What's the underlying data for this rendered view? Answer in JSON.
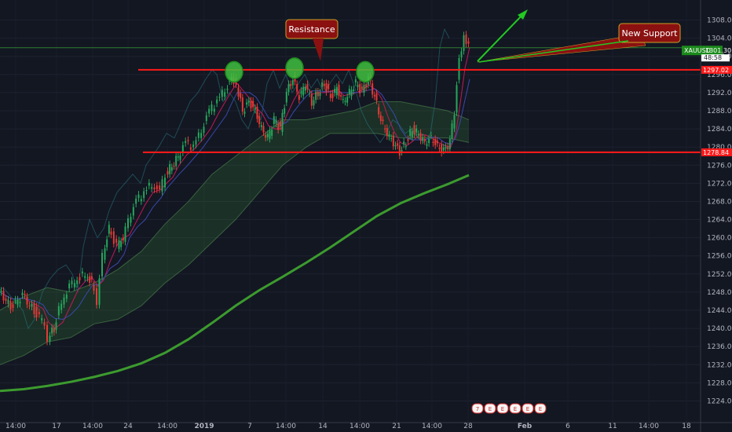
{
  "chart_data": {
    "type": "candlestick",
    "symbol": "XAUUSD",
    "last_price": "1301.30",
    "countdown": "48:58",
    "y_axis": {
      "ylim": [
        1222,
        1310
      ],
      "ticks": [
        "1308.00",
        "1304.00",
        "1300.00",
        "1296.00",
        "1292.00",
        "1288.00",
        "1284.00",
        "1280.00",
        "1276.00",
        "1272.00",
        "1268.00",
        "1264.00",
        "1260.00",
        "1256.00",
        "1252.00",
        "1248.00",
        "1244.00",
        "1240.00",
        "1236.00",
        "1232.00",
        "1228.00",
        "1224.00"
      ]
    },
    "x_axis": {
      "labels": [
        "14:00",
        "17",
        "14:00",
        "24",
        "14:00",
        "2019",
        "7",
        "14:00",
        "14",
        "14:00",
        "21",
        "14:00",
        "28",
        "Feb",
        "6",
        "11",
        "14:00",
        "18"
      ]
    },
    "horizontal_levels": [
      {
        "name": "resistance",
        "value": 1297.02,
        "label": "1297.02",
        "color": "#ff1a1a"
      },
      {
        "name": "support",
        "value": 1278.84,
        "label": "1278.84",
        "color": "#ff1a1a"
      }
    ],
    "annotations": {
      "resistance": "Resistance",
      "new_support": "New Support"
    },
    "event_badges": [
      "7",
      "E",
      "E",
      "E",
      "E",
      "E"
    ],
    "moving_average_200": [
      [
        0,
        1226.2
      ],
      [
        30,
        1226.6
      ],
      [
        60,
        1227.3
      ],
      [
        90,
        1228.2
      ],
      [
        120,
        1229.3
      ],
      [
        150,
        1230.6
      ],
      [
        180,
        1232.3
      ],
      [
        210,
        1234.6
      ],
      [
        240,
        1237.6
      ],
      [
        270,
        1241.2
      ],
      [
        300,
        1245.0
      ],
      [
        330,
        1248.4
      ],
      [
        360,
        1251.4
      ],
      [
        390,
        1254.5
      ],
      [
        420,
        1257.8
      ],
      [
        450,
        1261.3
      ],
      [
        480,
        1264.8
      ],
      [
        510,
        1267.6
      ],
      [
        540,
        1269.8
      ],
      [
        570,
        1271.8
      ],
      [
        597,
        1273.8
      ]
    ],
    "cloud_upper": [
      [
        0,
        1244
      ],
      [
        30,
        1247
      ],
      [
        60,
        1249
      ],
      [
        90,
        1248
      ],
      [
        120,
        1250
      ],
      [
        150,
        1253
      ],
      [
        180,
        1257
      ],
      [
        210,
        1263
      ],
      [
        240,
        1268
      ],
      [
        270,
        1274
      ],
      [
        300,
        1278
      ],
      [
        330,
        1282
      ],
      [
        360,
        1286
      ],
      [
        390,
        1286
      ],
      [
        420,
        1287
      ],
      [
        450,
        1288
      ],
      [
        480,
        1290
      ],
      [
        510,
        1290
      ],
      [
        540,
        1289
      ],
      [
        570,
        1288
      ],
      [
        597,
        1286
      ]
    ],
    "cloud_lower": [
      [
        0,
        1232
      ],
      [
        30,
        1234
      ],
      [
        60,
        1237
      ],
      [
        90,
        1238
      ],
      [
        120,
        1241
      ],
      [
        150,
        1242
      ],
      [
        180,
        1245
      ],
      [
        210,
        1250
      ],
      [
        240,
        1254
      ],
      [
        270,
        1259
      ],
      [
        300,
        1264
      ],
      [
        330,
        1270
      ],
      [
        360,
        1276
      ],
      [
        390,
        1280
      ],
      [
        420,
        1283
      ],
      [
        450,
        1283
      ],
      [
        480,
        1283
      ],
      [
        510,
        1282
      ],
      [
        540,
        1282
      ],
      [
        570,
        1282
      ],
      [
        597,
        1281
      ]
    ],
    "price_path": [
      [
        0,
        1248
      ],
      [
        15,
        1245
      ],
      [
        30,
        1247
      ],
      [
        45,
        1244
      ],
      [
        55,
        1242
      ],
      [
        62,
        1238
      ],
      [
        70,
        1240
      ],
      [
        80,
        1246
      ],
      [
        90,
        1249
      ],
      [
        100,
        1251
      ],
      [
        110,
        1252
      ],
      [
        118,
        1250
      ],
      [
        125,
        1246
      ],
      [
        132,
        1256
      ],
      [
        140,
        1262
      ],
      [
        150,
        1258
      ],
      [
        158,
        1260
      ],
      [
        165,
        1264
      ],
      [
        175,
        1268
      ],
      [
        185,
        1270
      ],
      [
        195,
        1272
      ],
      [
        205,
        1270
      ],
      [
        212,
        1274
      ],
      [
        220,
        1276
      ],
      [
        228,
        1278
      ],
      [
        238,
        1281
      ],
      [
        248,
        1280
      ],
      [
        258,
        1284
      ],
      [
        268,
        1288
      ],
      [
        278,
        1290
      ],
      [
        288,
        1293
      ],
      [
        296,
        1295
      ],
      [
        302,
        1294
      ],
      [
        310,
        1288
      ],
      [
        318,
        1290
      ],
      [
        326,
        1288
      ],
      [
        334,
        1284
      ],
      [
        342,
        1282
      ],
      [
        350,
        1286
      ],
      [
        358,
        1284
      ],
      [
        366,
        1292
      ],
      [
        374,
        1295
      ],
      [
        382,
        1291
      ],
      [
        390,
        1294
      ],
      [
        398,
        1290
      ],
      [
        406,
        1292
      ],
      [
        414,
        1294
      ],
      [
        422,
        1291
      ],
      [
        430,
        1293
      ],
      [
        438,
        1290
      ],
      [
        446,
        1292
      ],
      [
        454,
        1294
      ],
      [
        462,
        1292
      ],
      [
        470,
        1295
      ],
      [
        478,
        1291
      ],
      [
        486,
        1286
      ],
      [
        494,
        1283
      ],
      [
        502,
        1281
      ],
      [
        510,
        1279
      ],
      [
        518,
        1281
      ],
      [
        526,
        1284
      ],
      [
        534,
        1283
      ],
      [
        542,
        1281
      ],
      [
        550,
        1282
      ],
      [
        558,
        1280
      ],
      [
        566,
        1279
      ],
      [
        574,
        1281
      ],
      [
        580,
        1288
      ],
      [
        586,
        1300
      ],
      [
        592,
        1304
      ],
      [
        598,
        1302
      ]
    ]
  }
}
